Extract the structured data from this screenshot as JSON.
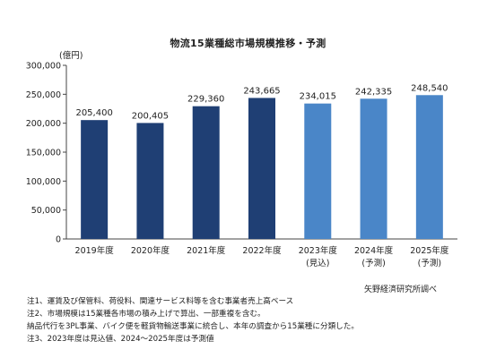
{
  "title": "物流15業種総市場規模推移・予測",
  "unit_label": "(億円)",
  "source": "矢野経済研究所調べ",
  "notes": [
    "注1、運賃及び保管料、荷役料、関連サービス料等を含む事業者売上高ベース",
    "注2、市場規模は15業種各市場の積み上げで算出、一部重複を含む。",
    "納品代行を3PL事業、バイク便を軽貨物輸送事業に統合し、本年の調査から15業種に分類した。",
    "注3、2023年度は見込値、2024～2025年度は予測値"
  ],
  "colors": {
    "actual": "#1f3f74",
    "forecast": "#4a86c8"
  },
  "chart_data": {
    "type": "bar",
    "title": "物流15業種総市場規模推移・予測",
    "ylabel": "(億円)",
    "ylim": [
      0,
      300000
    ],
    "yticks": [
      0,
      50000,
      100000,
      150000,
      200000,
      250000,
      300000
    ],
    "ytick_labels": [
      "0",
      "50,000",
      "100,000",
      "150,000",
      "200,000",
      "250,000",
      "300,000"
    ],
    "grid": false,
    "categories": [
      "2019年度",
      "2020年度",
      "2021年度",
      "2022年度",
      "2023年度",
      "2024年度",
      "2025年度"
    ],
    "sublabels": [
      "",
      "",
      "",
      "",
      "(見込)",
      "(予測)",
      "(予測)"
    ],
    "values": [
      205400,
      200405,
      229360,
      243665,
      234015,
      242335,
      248540
    ],
    "value_labels": [
      "205,400",
      "200,405",
      "229,360",
      "243,665",
      "234,015",
      "242,335",
      "248,540"
    ],
    "bar_kind": [
      "actual",
      "actual",
      "actual",
      "actual",
      "forecast",
      "forecast",
      "forecast"
    ]
  }
}
